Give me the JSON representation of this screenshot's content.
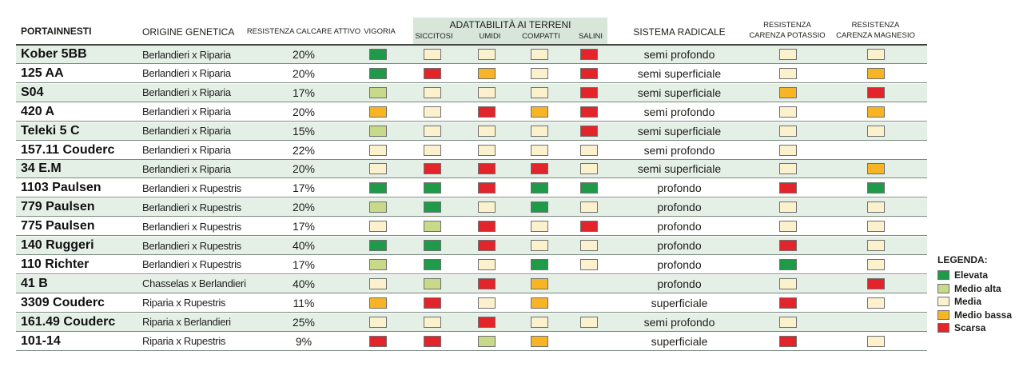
{
  "headers": {
    "portainnesti": "PORTAINNESTI",
    "origine": "ORIGINE GENETICA",
    "calcare": "RESISTENZA CALCARE ATTIVO",
    "vigoria": "VIGORIA",
    "adattabilita": "ADATTABILITÀ AI TERRENI",
    "siccitosi": "SICCITOSI",
    "umidi": "UMIDI",
    "compatti": "COMPATTI",
    "salini": "SALINI",
    "sistema": "SISTEMA RADICALE",
    "potassio_1": "RESISTENZA",
    "potassio_2": "CARENZA POTASSIO",
    "magnesio_1": "RESISTENZA",
    "magnesio_2": "CARENZA MAGNESIO"
  },
  "rows": [
    {
      "name": "Kober 5BB",
      "origin": "Berlandieri x Riparia",
      "calcare": "20%",
      "vigoria": "E",
      "siccitosi": "M",
      "umidi": "M",
      "compatti": "M",
      "salini": "S",
      "radicale": "semi profondo",
      "potassio": "M",
      "magnesio": "M"
    },
    {
      "name": "125 AA",
      "origin": "Berlandieri x Riparia",
      "calcare": "20%",
      "vigoria": "E",
      "siccitosi": "S",
      "umidi": "MB",
      "compatti": "M",
      "salini": "S",
      "radicale": "semi superficiale",
      "potassio": "M",
      "magnesio": "MB"
    },
    {
      "name": "S04",
      "origin": "Berlandieri x Riparia",
      "calcare": "17%",
      "vigoria": "MA",
      "siccitosi": "M",
      "umidi": "M",
      "compatti": "M",
      "salini": "S",
      "radicale": "semi superficiale",
      "potassio": "MB",
      "magnesio": "S"
    },
    {
      "name": "420 A",
      "origin": "Berlandieri x Riparia",
      "calcare": "20%",
      "vigoria": "MB",
      "siccitosi": "M",
      "umidi": "S",
      "compatti": "MB",
      "salini": "S",
      "radicale": "semi profondo",
      "potassio": "M",
      "magnesio": "MB"
    },
    {
      "name": "Teleki 5 C",
      "origin": "Berlandieri x Riparia",
      "calcare": "15%",
      "vigoria": "MA",
      "siccitosi": "M",
      "umidi": "M",
      "compatti": "M",
      "salini": "S",
      "radicale": "semi superficiale",
      "potassio": "M",
      "magnesio": "M"
    },
    {
      "name": "157.11 Couderc",
      "origin": "Berlandieri x Riparia",
      "calcare": "22%",
      "vigoria": "M",
      "siccitosi": "M",
      "umidi": "M",
      "compatti": "M",
      "salini": "M",
      "radicale": "semi profondo",
      "potassio": "M",
      "magnesio": null
    },
    {
      "name": "34 E.M",
      "origin": "Berlandieri x Riparia",
      "calcare": "20%",
      "vigoria": "M",
      "siccitosi": "S",
      "umidi": "S",
      "compatti": "S",
      "salini": "M",
      "radicale": "semi superficiale",
      "potassio": "M",
      "magnesio": "MB"
    },
    {
      "name": "1103 Paulsen",
      "origin": "Berlandieri x Rupestris",
      "calcare": "17%",
      "vigoria": "E",
      "siccitosi": "E",
      "umidi": "S",
      "compatti": "E",
      "salini": "E",
      "radicale": "profondo",
      "potassio": "S",
      "magnesio": "E"
    },
    {
      "name": "779 Paulsen",
      "origin": "Berlandieri x Rupestris",
      "calcare": "20%",
      "vigoria": "MA",
      "siccitosi": "E",
      "umidi": "M",
      "compatti": "E",
      "salini": "M",
      "radicale": "profondo",
      "potassio": "M",
      "magnesio": "M"
    },
    {
      "name": "775 Paulsen",
      "origin": "Berlandieri x Rupestris",
      "calcare": "17%",
      "vigoria": "M",
      "siccitosi": "MA",
      "umidi": "S",
      "compatti": "M",
      "salini": "S",
      "radicale": "profondo",
      "potassio": "M",
      "magnesio": "M"
    },
    {
      "name": "140 Ruggeri",
      "origin": "Berlandieri x Rupestris",
      "calcare": "40%",
      "vigoria": "E",
      "siccitosi": "E",
      "umidi": "S",
      "compatti": "M",
      "salini": "M",
      "radicale": "profondo",
      "potassio": "S",
      "magnesio": "M"
    },
    {
      "name": "110 Richter",
      "origin": "Berlandieri x Rupestris",
      "calcare": "17%",
      "vigoria": "MA",
      "siccitosi": "E",
      "umidi": "M",
      "compatti": "E",
      "salini": "M",
      "radicale": "profondo",
      "potassio": "E",
      "magnesio": "M"
    },
    {
      "name": "41 B",
      "origin": "Chasselas x Berlandieri",
      "calcare": "40%",
      "vigoria": "M",
      "siccitosi": "MA",
      "umidi": "S",
      "compatti": "MB",
      "salini": null,
      "radicale": "profondo",
      "potassio": "M",
      "magnesio": "S"
    },
    {
      "name": "3309 Couderc",
      "origin": "Riparia x Rupestris",
      "calcare": "11%",
      "vigoria": "MB",
      "siccitosi": "S",
      "umidi": "M",
      "compatti": "MB",
      "salini": null,
      "radicale": "superficiale",
      "potassio": "S",
      "magnesio": "M"
    },
    {
      "name": "161.49 Couderc",
      "origin": "Riparia x Berlandieri",
      "calcare": "25%",
      "vigoria": "M",
      "siccitosi": "M",
      "umidi": "S",
      "compatti": "M",
      "salini": "M",
      "radicale": "semi profondo",
      "potassio": "M",
      "magnesio": null
    },
    {
      "name": "101-14",
      "origin": "Riparia x Rupestris",
      "calcare": "9%",
      "vigoria": "S",
      "siccitosi": "S",
      "umidi": "MA",
      "compatti": "MB",
      "salini": null,
      "radicale": "superficiale",
      "potassio": "S",
      "magnesio": "M"
    }
  ],
  "legend": {
    "title": "LEGENDA:",
    "items": [
      {
        "code": "E",
        "label": "Elevata",
        "color": "#1f9a48"
      },
      {
        "code": "MA",
        "label": "Medio alta",
        "color": "#c8d98a"
      },
      {
        "code": "M",
        "label": "Media",
        "color": "#fbf1cc"
      },
      {
        "code": "MB",
        "label": "Medio bassa",
        "color": "#f7b526"
      },
      {
        "code": "S",
        "label": "Scarsa",
        "color": "#e3242b"
      }
    ]
  }
}
